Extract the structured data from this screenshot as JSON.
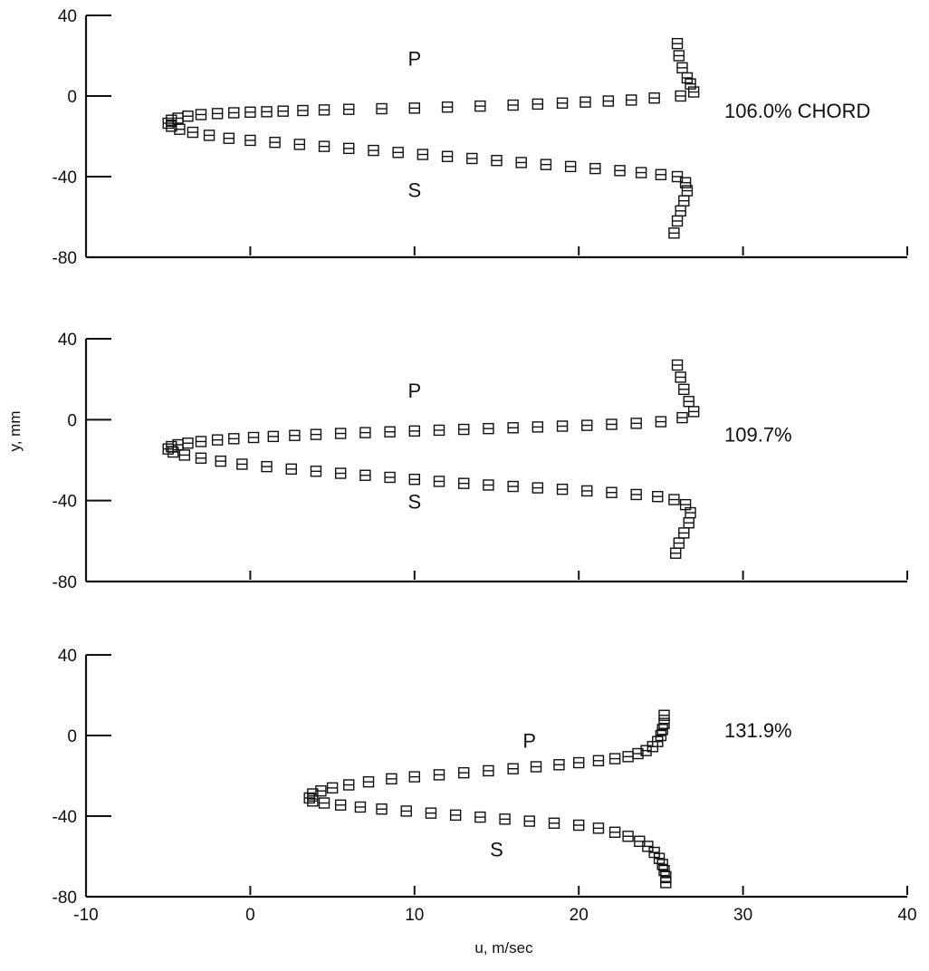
{
  "chart_data": [
    {
      "type": "scatter",
      "title": "",
      "xlabel": "",
      "ylabel": "",
      "xlim": [
        -10,
        40
      ],
      "ylim": [
        -80,
        40
      ],
      "yticks": [
        {
          "value": 40,
          "label": "40"
        },
        {
          "value": 0,
          "label": "0"
        },
        {
          "value": -40,
          "label": "-40"
        },
        {
          "value": -80,
          "label": "-80"
        }
      ],
      "xticks": [
        0,
        10,
        20,
        30,
        40
      ],
      "xtick_labels_shown": false,
      "station_label": "106.0% CHORD",
      "annotations": [
        {
          "text": "P",
          "x": 10,
          "y": 15
        },
        {
          "text": "S",
          "x": 10,
          "y": -50
        }
      ],
      "series": [
        {
          "x": [
            26.0,
            26.1,
            26.3,
            26.6,
            26.8,
            27.0,
            26.2,
            24.6,
            23.2,
            21.8,
            20.4,
            19.0,
            17.5,
            16.0,
            14.0,
            12.0,
            10.0,
            8.0,
            6.0,
            4.5,
            3.2,
            2.0,
            1.0,
            0.0,
            -1.0,
            -2.0,
            -3.0,
            -3.8,
            -4.4,
            -4.8,
            -5.0,
            -4.8,
            -4.3,
            -3.5,
            -2.5,
            -1.3,
            0.0,
            1.5,
            3.0,
            4.5,
            6.0,
            7.5,
            9.0,
            10.5,
            12.0,
            13.5,
            15.0,
            16.5,
            18.0,
            19.5,
            21.0,
            22.5,
            23.8,
            25.0,
            26.0,
            26.5,
            26.6,
            26.4,
            26.2,
            26.0,
            25.8
          ],
          "y": [
            26,
            20,
            14,
            9,
            6,
            2,
            0,
            -1,
            -2,
            -2.5,
            -3,
            -3.5,
            -4,
            -4.5,
            -5,
            -5.5,
            -6,
            -6.3,
            -6.6,
            -6.9,
            -7.2,
            -7.5,
            -7.8,
            -8,
            -8.3,
            -8.7,
            -9.2,
            -10,
            -11,
            -12,
            -13.5,
            -15,
            -16.5,
            -18,
            -19.5,
            -21,
            -22,
            -23,
            -24,
            -25,
            -26,
            -27,
            -28,
            -29,
            -30,
            -31,
            -32,
            -33,
            -34,
            -35,
            -36,
            -37,
            -38,
            -39,
            -40,
            -43,
            -47,
            -52,
            -57,
            -62,
            -68
          ]
        }
      ]
    },
    {
      "type": "scatter",
      "title": "",
      "xlabel": "",
      "ylabel": "y, mm",
      "xlim": [
        -10,
        40
      ],
      "ylim": [
        -80,
        40
      ],
      "yticks": [
        {
          "value": 40,
          "label": "40"
        },
        {
          "value": 0,
          "label": "0"
        },
        {
          "value": -40,
          "label": "-40"
        },
        {
          "value": -80,
          "label": "-80"
        }
      ],
      "xticks": [
        0,
        10,
        20,
        30,
        40
      ],
      "xtick_labels_shown": false,
      "station_label": "109.7%",
      "annotations": [
        {
          "text": "P",
          "x": 10,
          "y": 11
        },
        {
          "text": "S",
          "x": 10,
          "y": -44
        }
      ],
      "series": [
        {
          "x": [
            26.0,
            26.2,
            26.4,
            26.7,
            27.0,
            26.3,
            25.0,
            23.5,
            22.0,
            20.5,
            19.0,
            17.5,
            16.0,
            14.5,
            13.0,
            11.5,
            10.0,
            8.5,
            7.0,
            5.5,
            4.0,
            2.7,
            1.4,
            0.2,
            -1.0,
            -2.0,
            -3.0,
            -3.8,
            -4.4,
            -4.8,
            -5.0,
            -4.7,
            -4.0,
            -3.0,
            -1.8,
            -0.5,
            1.0,
            2.5,
            4.0,
            5.5,
            7.0,
            8.5,
            10.0,
            11.5,
            13.0,
            14.5,
            16.0,
            17.5,
            19.0,
            20.5,
            22.0,
            23.5,
            24.8,
            25.8,
            26.5,
            26.8,
            26.7,
            26.4,
            26.1,
            25.9
          ],
          "y": [
            27,
            21,
            15,
            9,
            4,
            1,
            -1,
            -1.8,
            -2.3,
            -2.8,
            -3.2,
            -3.6,
            -4,
            -4.4,
            -4.8,
            -5.2,
            -5.6,
            -6,
            -6.4,
            -6.8,
            -7.3,
            -7.8,
            -8.3,
            -8.8,
            -9.4,
            -10,
            -10.8,
            -11.6,
            -12.4,
            -13.3,
            -14.5,
            -16,
            -17.5,
            -19,
            -20.5,
            -22,
            -23.2,
            -24.4,
            -25.5,
            -26.5,
            -27.5,
            -28.5,
            -29.5,
            -30.5,
            -31.5,
            -32.3,
            -33,
            -33.7,
            -34.4,
            -35.2,
            -36,
            -37,
            -38,
            -39.5,
            -42,
            -46,
            -51,
            -56,
            -61,
            -66
          ]
        }
      ]
    },
    {
      "type": "scatter",
      "title": "",
      "xlabel": "u, m/sec",
      "ylabel": "",
      "xlim": [
        -10,
        40
      ],
      "ylim": [
        -80,
        40
      ],
      "yticks": [
        {
          "value": 40,
          "label": "40"
        },
        {
          "value": 0,
          "label": "0"
        },
        {
          "value": -40,
          "label": "-40"
        },
        {
          "value": -80,
          "label": "-80"
        }
      ],
      "xticks": [
        0,
        10,
        20,
        30,
        40
      ],
      "xtick_labels_shown": true,
      "xtick_labels": [
        "-10",
        "0",
        "10",
        "20",
        "30",
        "40"
      ],
      "xtick_label_values": [
        -10,
        0,
        10,
        20,
        30,
        40
      ],
      "station_label": "131.9%",
      "annotations": [
        {
          "text": "P",
          "x": 17,
          "y": -6
        },
        {
          "text": "S",
          "x": 15,
          "y": -60
        }
      ],
      "series": [
        {
          "x": [
            25.2,
            25.2,
            25.1,
            25.0,
            24.8,
            24.5,
            24.1,
            23.6,
            23.0,
            22.2,
            21.2,
            20.0,
            18.8,
            17.4,
            16.0,
            14.5,
            13.0,
            11.5,
            10.0,
            8.6,
            7.2,
            6.0,
            5.0,
            4.3,
            3.8,
            3.6,
            3.8,
            4.5,
            5.5,
            6.7,
            8.0,
            9.5,
            11.0,
            12.5,
            14.0,
            15.5,
            17.0,
            18.5,
            20.0,
            21.2,
            22.2,
            23.0,
            23.7,
            24.2,
            24.6,
            24.9,
            25.1,
            25.2,
            25.3,
            25.3
          ],
          "y": [
            10,
            6,
            3,
            0,
            -3,
            -5.5,
            -7.5,
            -9,
            -10.5,
            -11.5,
            -12.5,
            -13.5,
            -14.5,
            -15.5,
            -16.5,
            -17.5,
            -18.5,
            -19.5,
            -20.5,
            -21.5,
            -23,
            -24.5,
            -26,
            -27.5,
            -29,
            -31,
            -32.5,
            -33.5,
            -34.5,
            -35.5,
            -36.5,
            -37.5,
            -38.5,
            -39.5,
            -40.5,
            -41.5,
            -42.5,
            -43.5,
            -44.5,
            -46,
            -48,
            -50,
            -52.5,
            -55,
            -58,
            -61,
            -64,
            -67,
            -70,
            -73
          ]
        }
      ]
    }
  ]
}
